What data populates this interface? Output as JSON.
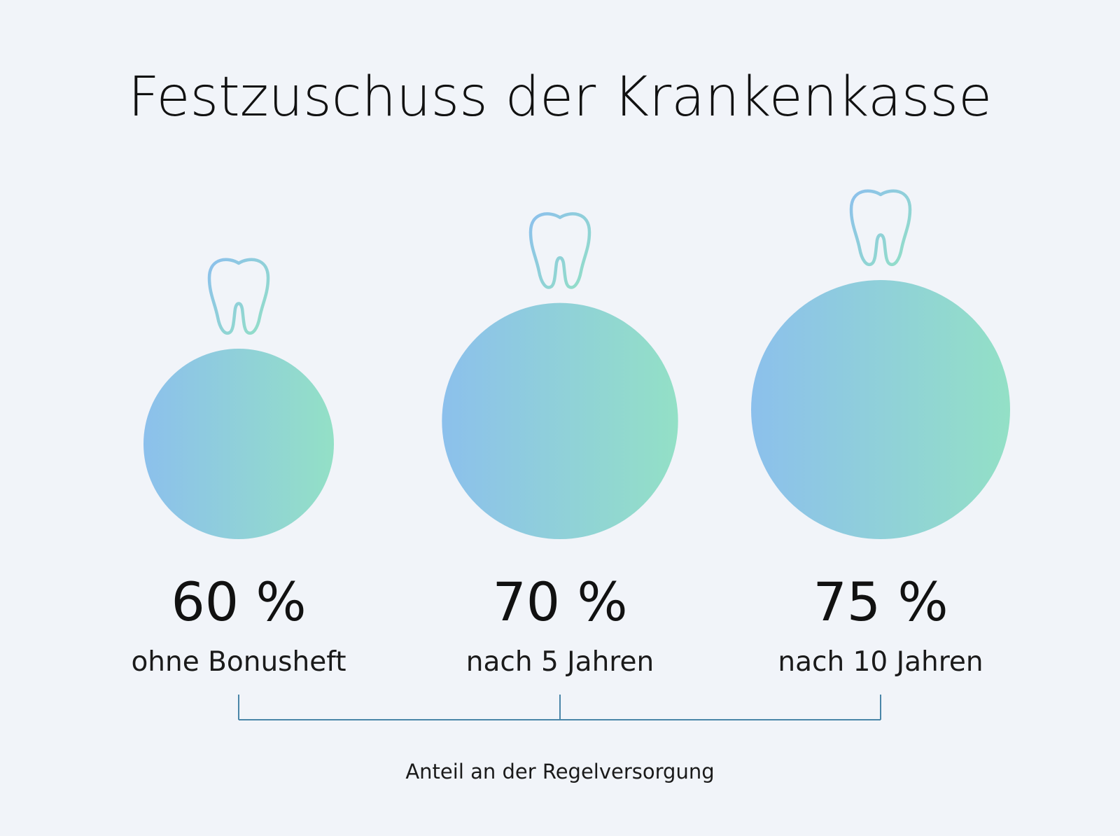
{
  "title": "Festzuschuss der Krankenkasse",
  "colors": {
    "background": "#f1f4f9",
    "bubble_gradient_start": "#8cc0ec",
    "bubble_gradient_end": "#93e0c6",
    "tooth_stroke_start": "#8cc0ec",
    "tooth_stroke_end": "#93e0c6",
    "bracket": "#4a86a8",
    "text": "#111111"
  },
  "icons": {
    "marker": "tooth-icon"
  },
  "chart_data": {
    "type": "bubble",
    "title": "Festzuschuss der Krankenkasse",
    "categories": [
      "ohne Bonusheft",
      "nach 5 Jahren",
      "nach 10 Jahren"
    ],
    "values": [
      60,
      70,
      75
    ],
    "value_labels": [
      "60 %",
      "70 %",
      "75 %"
    ],
    "unit": "%",
    "bracket_label": "Anteil an der Regelversorgung",
    "grid": false,
    "legend": "none"
  }
}
